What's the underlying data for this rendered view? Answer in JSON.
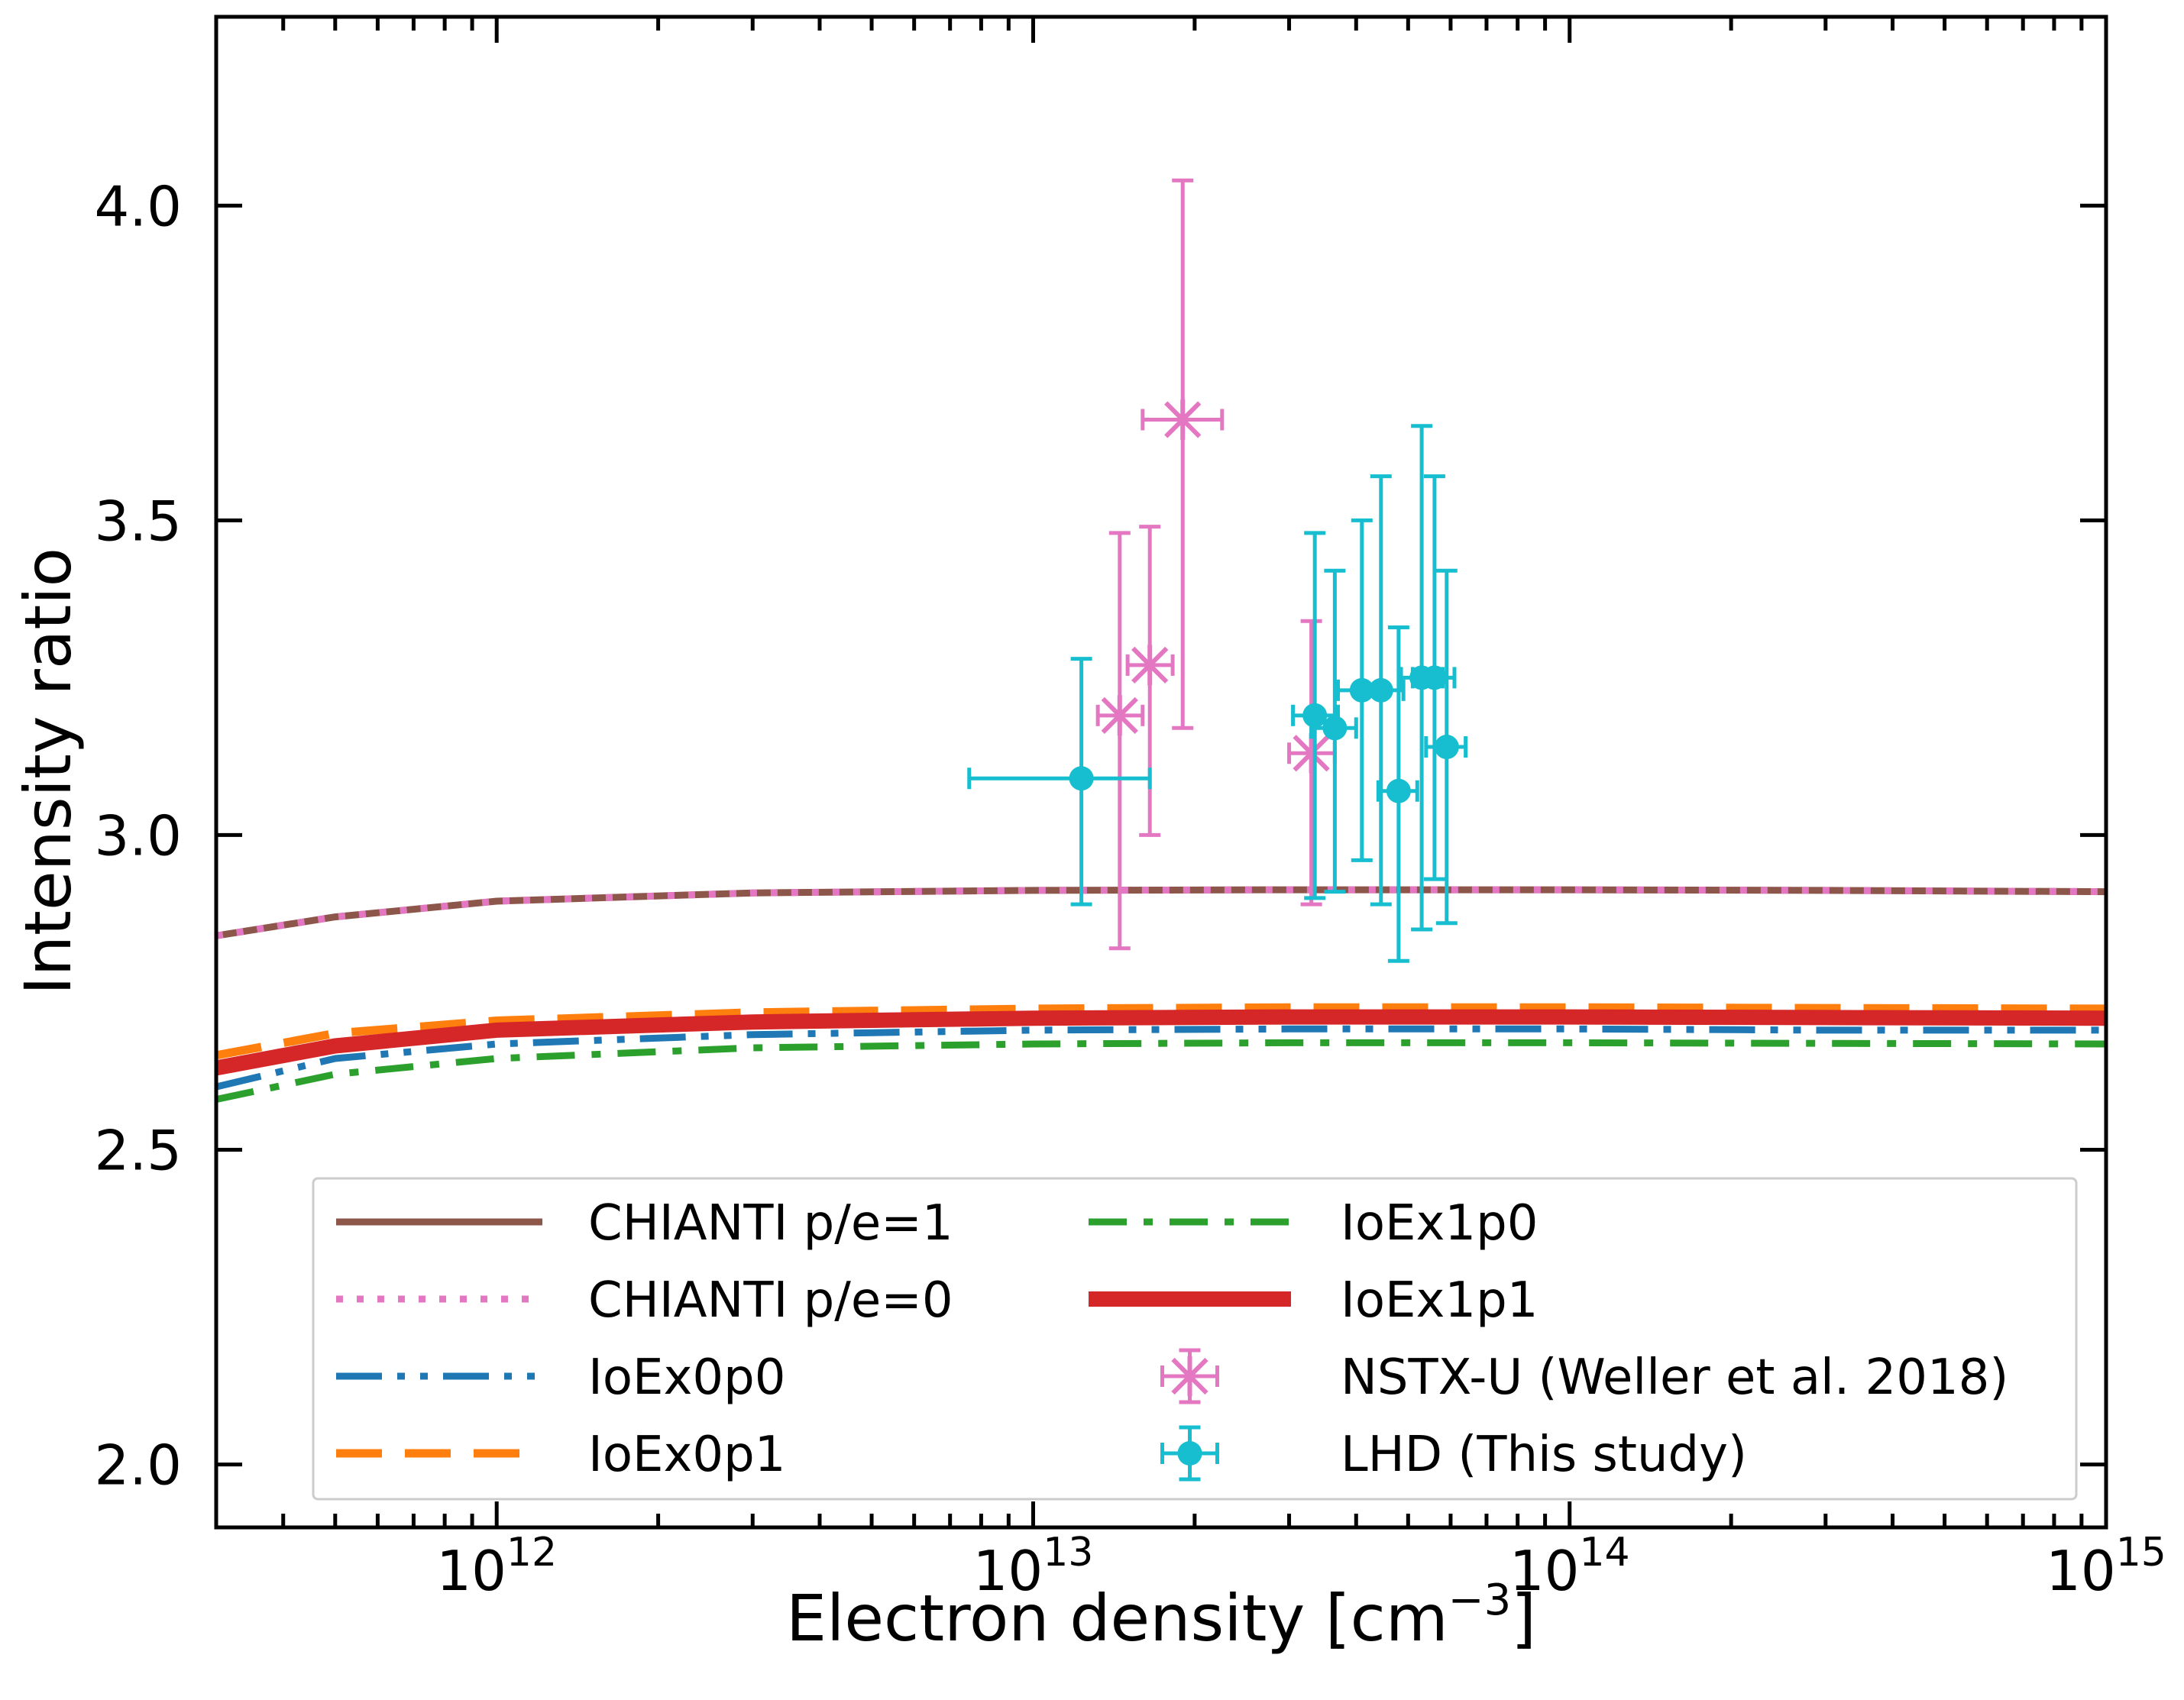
{
  "chart_data": {
    "type": "line",
    "title": "",
    "xlabel": "Electron density [cm",
    "xlabel_sup": "−3",
    "xlabel_suffix": "]",
    "ylabel": "Intensity ratio",
    "xscale": "log",
    "xlim": [
      300000000000.0,
      1000000000000000.0
    ],
    "ylim": [
      1.9,
      4.3
    ],
    "yticks": [
      2.0,
      2.5,
      3.0,
      3.5,
      4.0
    ],
    "ytick_labels": [
      "2.0",
      "2.5",
      "3.0",
      "3.5",
      "4.0"
    ],
    "xticks": [
      1000000000000.0,
      10000000000000.0,
      100000000000000.0,
      1000000000000000.0
    ],
    "xtick_base": [
      "10",
      "10",
      "10",
      "10"
    ],
    "xtick_exp": [
      "12",
      "13",
      "14",
      "15"
    ],
    "legend_position": "lower-center",
    "x_density": [
      300000000000.0,
      500000000000.0,
      1000000000000.0,
      3000000000000.0,
      10000000000000.0,
      30000000000000.0,
      100000000000000.0,
      300000000000000.0,
      1000000000000000.0
    ],
    "series": [
      {
        "name": "CHIANTI p/e=1",
        "color": "#8c564b",
        "style": "solid",
        "values": [
          2.84,
          2.87,
          2.895,
          2.908,
          2.912,
          2.913,
          2.913,
          2.912,
          2.91
        ]
      },
      {
        "name": "CHIANTI p/e=0",
        "color": "#e377c2",
        "style": "dotted",
        "values": [
          2.84,
          2.87,
          2.895,
          2.908,
          2.912,
          2.913,
          2.913,
          2.912,
          2.91
        ]
      },
      {
        "name": "IoEx0p0",
        "color": "#1f77b4",
        "style": "dash-dot-dot",
        "values": [
          2.6,
          2.645,
          2.668,
          2.683,
          2.69,
          2.692,
          2.692,
          2.69,
          2.69
        ]
      },
      {
        "name": "IoEx0p1",
        "color": "#ff7f0e",
        "style": "dashed",
        "values": [
          2.65,
          2.685,
          2.705,
          2.718,
          2.724,
          2.726,
          2.726,
          2.725,
          2.724
        ]
      },
      {
        "name": "IoEx1p0",
        "color": "#2ca02c",
        "style": "dash-dot",
        "values": [
          2.58,
          2.62,
          2.645,
          2.662,
          2.668,
          2.67,
          2.67,
          2.669,
          2.668
        ]
      },
      {
        "name": "IoEx1p1",
        "color": "#d62728",
        "style": "thick-solid",
        "values": [
          2.63,
          2.665,
          2.69,
          2.703,
          2.709,
          2.711,
          2.711,
          2.71,
          2.709
        ]
      }
    ],
    "scatter_series": [
      {
        "name": "NSTX-U (Weller et al. 2018)",
        "color": "#e377c2",
        "marker": "x-star",
        "points": [
          {
            "x": 14500000000000.0,
            "y": 3.19,
            "xlo": 13200000000000.0,
            "xhi": 16000000000000.0,
            "ylo": 2.82,
            "yhi": 3.48
          },
          {
            "x": 16500000000000.0,
            "y": 3.27,
            "xlo": 15000000000000.0,
            "xhi": 18200000000000.0,
            "ylo": 3.0,
            "yhi": 3.49
          },
          {
            "x": 19000000000000.0,
            "y": 3.66,
            "xlo": 16000000000000.0,
            "xhi": 22500000000000.0,
            "ylo": 3.17,
            "yhi": 4.04
          },
          {
            "x": 33000000000000.0,
            "y": 3.13,
            "xlo": 30000000000000.0,
            "xhi": 36500000000000.0,
            "ylo": 2.89,
            "yhi": 3.34
          }
        ]
      },
      {
        "name": "LHD (This study)",
        "color": "#17becf",
        "marker": "circle",
        "points": [
          {
            "x": 12300000000000.0,
            "y": 3.09,
            "xlo": 7600000000000.0,
            "xhi": 16500000000000.0,
            "ylo": 2.89,
            "yhi": 3.28
          },
          {
            "x": 33500000000000.0,
            "y": 3.19,
            "xlo": 30500000000000.0,
            "xhi": 37000000000000.0,
            "ylo": 2.9,
            "yhi": 3.48
          },
          {
            "x": 36500000000000.0,
            "y": 3.17,
            "xlo": 33000000000000.0,
            "xhi": 40000000000000.0,
            "ylo": 2.91,
            "yhi": 3.42
          },
          {
            "x": 41000000000000.0,
            "y": 3.23,
            "xlo": 37000000000000.0,
            "xhi": 45000000000000.0,
            "ylo": 2.96,
            "yhi": 3.5
          },
          {
            "x": 44500000000000.0,
            "y": 3.23,
            "xlo": 40500000000000.0,
            "xhi": 49000000000000.0,
            "ylo": 2.89,
            "yhi": 3.57
          },
          {
            "x": 48000000000000.0,
            "y": 3.07,
            "xlo": 44000000000000.0,
            "xhi": 52000000000000.0,
            "ylo": 2.8,
            "yhi": 3.33
          },
          {
            "x": 53000000000000.0,
            "y": 3.25,
            "xlo": 48500000000000.0,
            "xhi": 58000000000000.0,
            "ylo": 2.85,
            "yhi": 3.65
          },
          {
            "x": 56000000000000.0,
            "y": 3.25,
            "xlo": 51000000000000.0,
            "xhi": 61000000000000.0,
            "ylo": 2.93,
            "yhi": 3.57
          },
          {
            "x": 59000000000000.0,
            "y": 3.14,
            "xlo": 54000000000000.0,
            "xhi": 64000000000000.0,
            "ylo": 2.86,
            "yhi": 3.42
          }
        ]
      }
    ]
  }
}
